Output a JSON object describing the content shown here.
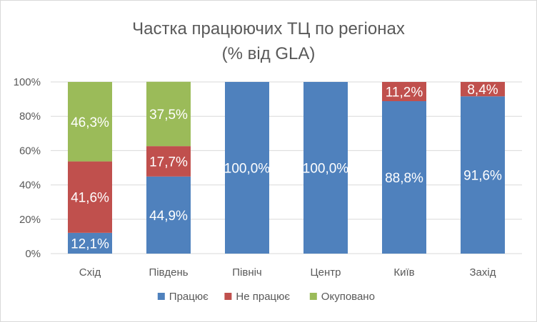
{
  "chart_data": {
    "type": "bar",
    "stacked": true,
    "title": "Частка працюючих ТЦ по регіонах",
    "subtitle": "(% від GLA)",
    "categories": [
      "Схід",
      "Південь",
      "Північ",
      "Центр",
      "Київ",
      "Захід"
    ],
    "series": [
      {
        "name": "Працює",
        "color": "#4f81bd",
        "values": [
          12.1,
          44.9,
          100.0,
          100.0,
          88.8,
          91.6
        ],
        "labels": [
          "12,1%",
          "44,9%",
          "100,0%",
          "100,0%",
          "88,8%",
          "91,6%"
        ]
      },
      {
        "name": "Не працює",
        "color": "#c0504d",
        "values": [
          41.6,
          17.7,
          0,
          0,
          11.2,
          8.4
        ],
        "labels": [
          "41,6%",
          "17,7%",
          "",
          "",
          "11,2%",
          "8,4%"
        ]
      },
      {
        "name": "Окуповано",
        "color": "#9bbb59",
        "values": [
          46.3,
          37.5,
          0,
          0,
          0,
          0
        ],
        "labels": [
          "46,3%",
          "37,5%",
          "",
          "",
          "",
          ""
        ]
      }
    ],
    "y_ticks": [
      0,
      20,
      40,
      60,
      80,
      100
    ],
    "y_tick_labels": [
      "0%",
      "20%",
      "40%",
      "60%",
      "80%",
      "100%"
    ],
    "ylim": [
      0,
      100
    ],
    "grid": true,
    "legend_position": "bottom",
    "xlabel": "",
    "ylabel": ""
  }
}
